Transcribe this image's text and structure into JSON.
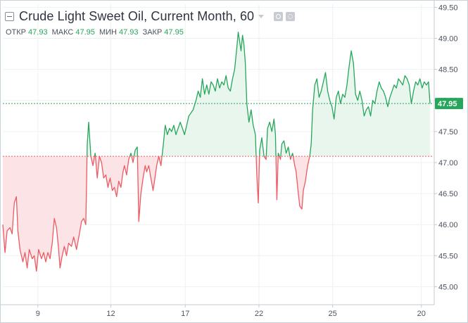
{
  "header": {
    "title": "Crude Light Sweet Oil, Current Month, 60",
    "ohlc": [
      {
        "label": "ОТКР",
        "value": "47.93"
      },
      {
        "label": "МАКС",
        "value": "47.95"
      },
      {
        "label": "МИН",
        "value": "47.93"
      },
      {
        "label": "ЗАКР",
        "value": "47.95"
      }
    ],
    "icons": [
      "collapse-icon",
      "eye-icon",
      "gear-icon"
    ]
  },
  "colors": {
    "up": "#26a65b",
    "down": "#ee5a63",
    "up_fill": "#e8f6ee",
    "down_fill": "#fce3e5",
    "grid": "#eef1f4",
    "axis_text": "#4c525e",
    "price_tag": "#26a65b"
  },
  "chart_data": {
    "type": "area",
    "title": "Crude Light Sweet Oil, Current Month, 60",
    "baseline": 47.1,
    "last_price": 47.95,
    "last_price_label": "47.95",
    "y_axis": {
      "position": "right",
      "ylim": [
        44.71,
        49.55
      ],
      "ticks": [
        45.0,
        45.5,
        46.0,
        46.5,
        47.0,
        47.5,
        48.0,
        48.5,
        49.0,
        49.5
      ],
      "tick_labels": [
        "45.00",
        "45.50",
        "46.00",
        "46.50",
        "47.00",
        "47.50",
        "48.00",
        "48.50",
        "49.00",
        "49.50"
      ]
    },
    "x_axis": {
      "ticks": [
        {
          "x": 4.9,
          "label": "9"
        },
        {
          "x": 15.1,
          "label": "12"
        },
        {
          "x": 25.5,
          "label": "17"
        },
        {
          "x": 35.8,
          "label": "22"
        },
        {
          "x": 46.1,
          "label": "25"
        },
        {
          "x": 58.5,
          "label": "20"
        }
      ],
      "xlim": [
        0,
        60
      ]
    },
    "grid": true,
    "series": [
      {
        "points": [
          [
            0.0,
            46.0
          ],
          [
            0.3,
            45.55
          ],
          [
            0.6,
            45.9
          ],
          [
            1.0,
            45.95
          ],
          [
            1.3,
            45.85
          ],
          [
            1.6,
            46.35
          ],
          [
            1.9,
            46.45
          ],
          [
            2.1,
            45.9
          ],
          [
            2.4,
            45.6
          ],
          [
            2.8,
            45.4
          ],
          [
            3.1,
            45.55
          ],
          [
            3.4,
            45.3
          ],
          [
            3.7,
            45.6
          ],
          [
            4.1,
            45.45
          ],
          [
            4.4,
            45.5
          ],
          [
            4.7,
            45.25
          ],
          [
            5.0,
            45.6
          ],
          [
            5.4,
            45.45
          ],
          [
            5.7,
            45.55
          ],
          [
            6.0,
            45.4
          ],
          [
            6.3,
            45.55
          ],
          [
            6.6,
            45.45
          ],
          [
            6.9,
            45.7
          ],
          [
            7.2,
            46.1
          ],
          [
            7.5,
            45.95
          ],
          [
            7.8,
            45.6
          ],
          [
            8.0,
            45.3
          ],
          [
            8.3,
            45.5
          ],
          [
            8.6,
            45.65
          ],
          [
            8.9,
            45.5
          ],
          [
            9.2,
            45.7
          ],
          [
            9.6,
            45.65
          ],
          [
            9.9,
            45.8
          ],
          [
            10.3,
            45.6
          ],
          [
            10.7,
            45.85
          ],
          [
            11.0,
            46.05
          ],
          [
            11.3,
            46.1
          ],
          [
            11.6,
            46.0
          ],
          [
            11.8,
            47.3
          ],
          [
            12.0,
            47.65
          ],
          [
            12.3,
            47.1
          ],
          [
            12.6,
            46.95
          ],
          [
            12.9,
            47.15
          ],
          [
            13.2,
            46.75
          ],
          [
            13.5,
            47.1
          ],
          [
            13.8,
            47.0
          ],
          [
            14.1,
            46.75
          ],
          [
            14.4,
            46.8
          ],
          [
            14.7,
            46.6
          ],
          [
            15.0,
            46.75
          ],
          [
            15.3,
            46.55
          ],
          [
            15.6,
            46.6
          ],
          [
            15.9,
            46.45
          ],
          [
            16.2,
            46.7
          ],
          [
            16.5,
            46.6
          ],
          [
            16.8,
            46.85
          ],
          [
            17.0,
            46.95
          ],
          [
            17.3,
            46.8
          ],
          [
            17.6,
            47.05
          ],
          [
            17.9,
            47.15
          ],
          [
            18.2,
            47.0
          ],
          [
            18.5,
            47.2
          ],
          [
            18.8,
            47.25
          ],
          [
            19.0,
            46.05
          ],
          [
            19.3,
            46.5
          ],
          [
            19.6,
            46.75
          ],
          [
            19.9,
            46.95
          ],
          [
            20.1,
            46.85
          ],
          [
            20.4,
            46.95
          ],
          [
            20.7,
            46.75
          ],
          [
            21.0,
            46.55
          ],
          [
            21.2,
            46.7
          ],
          [
            21.5,
            46.95
          ],
          [
            21.8,
            47.1
          ],
          [
            22.1,
            46.95
          ],
          [
            22.4,
            47.25
          ],
          [
            22.7,
            47.6
          ],
          [
            23.0,
            47.45
          ],
          [
            23.3,
            47.55
          ],
          [
            23.6,
            47.5
          ],
          [
            23.9,
            47.6
          ],
          [
            24.2,
            47.45
          ],
          [
            24.5,
            47.55
          ],
          [
            24.8,
            47.65
          ],
          [
            25.1,
            47.55
          ],
          [
            25.4,
            47.45
          ],
          [
            25.7,
            47.6
          ],
          [
            26.0,
            47.75
          ],
          [
            26.3,
            47.8
          ],
          [
            26.6,
            47.85
          ],
          [
            27.0,
            48.0
          ],
          [
            27.3,
            48.15
          ],
          [
            27.6,
            48.05
          ],
          [
            27.9,
            48.35
          ],
          [
            28.2,
            48.1
          ],
          [
            28.5,
            48.25
          ],
          [
            28.8,
            48.1
          ],
          [
            29.1,
            48.3
          ],
          [
            29.4,
            48.25
          ],
          [
            29.7,
            48.15
          ],
          [
            30.0,
            48.35
          ],
          [
            30.3,
            48.2
          ],
          [
            30.6,
            48.3
          ],
          [
            30.9,
            48.25
          ],
          [
            31.2,
            48.4
          ],
          [
            31.5,
            48.2
          ],
          [
            31.8,
            48.15
          ],
          [
            32.1,
            48.35
          ],
          [
            32.4,
            48.5
          ],
          [
            32.7,
            48.85
          ],
          [
            32.9,
            49.1
          ],
          [
            33.1,
            48.95
          ],
          [
            33.3,
            48.8
          ],
          [
            33.5,
            49.05
          ],
          [
            33.7,
            48.9
          ],
          [
            33.9,
            48.6
          ],
          [
            34.1,
            47.95
          ],
          [
            34.4,
            47.65
          ],
          [
            34.7,
            47.85
          ],
          [
            35.0,
            47.6
          ],
          [
            35.3,
            47.45
          ],
          [
            35.5,
            46.8
          ],
          [
            35.7,
            46.35
          ],
          [
            35.9,
            47.2
          ],
          [
            36.2,
            47.4
          ],
          [
            36.5,
            47.1
          ],
          [
            36.8,
            47.05
          ],
          [
            37.0,
            47.55
          ],
          [
            37.3,
            47.65
          ],
          [
            37.6,
            47.5
          ],
          [
            37.9,
            47.7
          ],
          [
            38.1,
            47.45
          ],
          [
            38.3,
            46.4
          ],
          [
            38.5,
            47.15
          ],
          [
            38.8,
            47.05
          ],
          [
            39.0,
            47.3
          ],
          [
            39.3,
            47.35
          ],
          [
            39.6,
            47.15
          ],
          [
            39.9,
            47.25
          ],
          [
            40.2,
            47.05
          ],
          [
            40.5,
            47.15
          ],
          [
            40.8,
            46.95
          ],
          [
            41.0,
            46.85
          ],
          [
            41.3,
            46.5
          ],
          [
            41.5,
            46.3
          ],
          [
            41.8,
            46.25
          ],
          [
            42.0,
            46.55
          ],
          [
            42.3,
            46.7
          ],
          [
            42.6,
            46.95
          ],
          [
            42.9,
            47.1
          ],
          [
            43.1,
            47.3
          ],
          [
            43.3,
            47.85
          ],
          [
            43.6,
            48.25
          ],
          [
            43.9,
            48.35
          ],
          [
            44.2,
            48.05
          ],
          [
            44.5,
            48.15
          ],
          [
            44.8,
            48.3
          ],
          [
            45.1,
            48.45
          ],
          [
            45.4,
            48.15
          ],
          [
            45.7,
            48.0
          ],
          [
            46.0,
            47.9
          ],
          [
            46.3,
            47.7
          ],
          [
            46.6,
            48.05
          ],
          [
            46.9,
            48.15
          ],
          [
            47.2,
            47.95
          ],
          [
            47.5,
            48.1
          ],
          [
            47.8,
            48.05
          ],
          [
            48.1,
            48.25
          ],
          [
            48.4,
            48.55
          ],
          [
            48.7,
            48.8
          ],
          [
            49.0,
            48.6
          ],
          [
            49.3,
            48.1
          ],
          [
            49.6,
            48.0
          ],
          [
            49.9,
            48.15
          ],
          [
            50.2,
            48.0
          ],
          [
            50.5,
            47.75
          ],
          [
            50.8,
            47.85
          ],
          [
            51.1,
            47.9
          ],
          [
            51.4,
            47.75
          ],
          [
            51.7,
            48.0
          ],
          [
            52.0,
            47.95
          ],
          [
            52.3,
            48.15
          ],
          [
            52.6,
            48.3
          ],
          [
            52.9,
            48.2
          ],
          [
            53.2,
            48.15
          ],
          [
            53.5,
            48.05
          ],
          [
            53.8,
            47.9
          ],
          [
            54.1,
            48.05
          ],
          [
            54.4,
            48.15
          ],
          [
            54.7,
            48.25
          ],
          [
            55.0,
            48.2
          ],
          [
            55.3,
            48.35
          ],
          [
            55.6,
            48.3
          ],
          [
            55.9,
            48.25
          ],
          [
            56.2,
            48.4
          ],
          [
            56.5,
            48.35
          ],
          [
            56.8,
            48.25
          ],
          [
            57.1,
            47.95
          ],
          [
            57.4,
            48.15
          ],
          [
            57.7,
            48.3
          ],
          [
            58.0,
            48.25
          ],
          [
            58.3,
            48.35
          ],
          [
            58.6,
            48.2
          ],
          [
            58.9,
            48.3
          ],
          [
            59.2,
            48.25
          ],
          [
            59.5,
            48.3
          ],
          [
            59.7,
            47.95
          ]
        ]
      }
    ]
  }
}
